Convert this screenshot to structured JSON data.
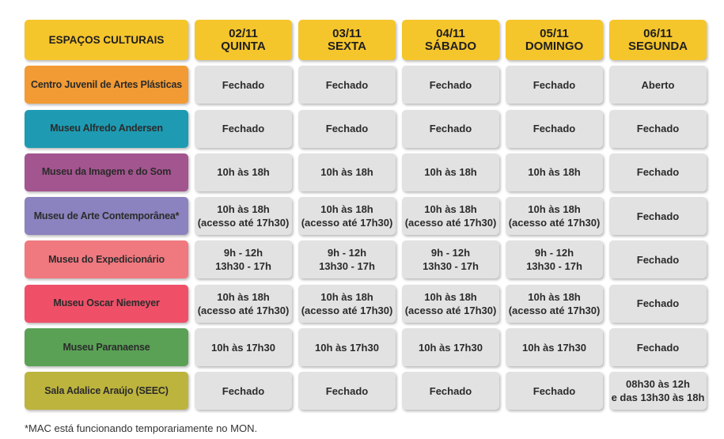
{
  "header": {
    "title": "ESPAÇOS CULTURAIS",
    "days": [
      {
        "date": "02/11",
        "weekday": "QUINTA"
      },
      {
        "date": "03/11",
        "weekday": "SEXTA"
      },
      {
        "date": "04/11",
        "weekday": "SÁBADO"
      },
      {
        "date": "05/11",
        "weekday": "DOMINGO"
      },
      {
        "date": "06/11",
        "weekday": "SEGUNDA"
      }
    ]
  },
  "rows": [
    {
      "name": "Centro Juvenil de Artes Plásticas",
      "color": "#f29b34",
      "hours": [
        "Fechado",
        "Fechado",
        "Fechado",
        "Fechado",
        "Aberto"
      ]
    },
    {
      "name": "Museu Alfredo Andersen",
      "color": "#1e9bb3",
      "hours": [
        "Fechado",
        "Fechado",
        "Fechado",
        "Fechado",
        "Fechado"
      ]
    },
    {
      "name": "Museu da Imagem e do Som",
      "color": "#a3558f",
      "hours": [
        "10h às 18h",
        "10h às 18h",
        "10h às 18h",
        "10h às 18h",
        "Fechado"
      ]
    },
    {
      "name": "Museu de Arte Contemporânea*",
      "color": "#8a83bf",
      "hours": [
        "10h às 18h\n(acesso até 17h30)",
        "10h às 18h\n(acesso até 17h30)",
        "10h às 18h\n(acesso até 17h30)",
        "10h às 18h\n(acesso até 17h30)",
        "Fechado"
      ]
    },
    {
      "name": "Museu do Expedicionário",
      "color": "#f0787f",
      "hours": [
        "9h - 12h\n13h30 - 17h",
        "9h - 12h\n13h30 - 17h",
        "9h - 12h\n13h30 - 17h",
        "9h - 12h\n13h30 - 17h",
        "Fechado"
      ]
    },
    {
      "name": "Museu Oscar Niemeyer",
      "color": "#ef5068",
      "hours": [
        "10h às 18h\n(acesso até 17h30)",
        "10h às 18h\n(acesso até 17h30)",
        "10h às 18h\n(acesso até 17h30)",
        "10h às 18h\n(acesso até 17h30)",
        "Fechado"
      ]
    },
    {
      "name": "Museu Paranaense",
      "color": "#5aa156",
      "hours": [
        "10h às 17h30",
        "10h às 17h30",
        "10h às 17h30",
        "10h às 17h30",
        "Fechado"
      ]
    },
    {
      "name": "Sala Adalice Araújo (SEEC)",
      "color": "#bdb43e",
      "hours": [
        "Fechado",
        "Fechado",
        "Fechado",
        "Fechado",
        "08h30 às 12h\ne das 13h30 às 18h"
      ]
    }
  ],
  "footnote": "*MAC está funcionando temporariamente no MON."
}
